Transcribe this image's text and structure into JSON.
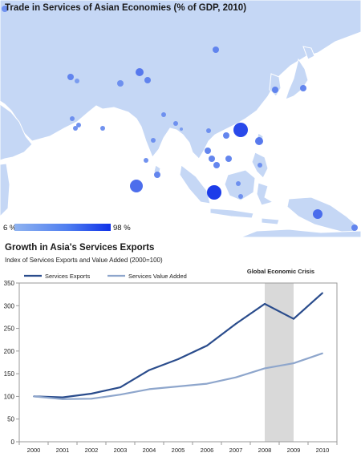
{
  "map": {
    "title": "Trade in Services of Asian Economies (% of GDP, 2010)",
    "legend": {
      "min_label": "6 %",
      "max_label": "98 %"
    },
    "colors": {
      "land": "#c5d7f5",
      "land_border": "#ffffff",
      "sea": "#ffffff",
      "bubble_low": "#8fb3f0",
      "bubble_high": "#1032e8"
    }
  },
  "chart_title": "Growth in Asia's Services Exports",
  "chart_subtitle": "Index of Services Exports and Value Added (2000=100)",
  "chart_data": {
    "type": "line",
    "x": [
      2000,
      2001,
      2002,
      2003,
      2004,
      2005,
      2006,
      2007,
      2008,
      2009,
      2010
    ],
    "categories": [
      "2000",
      "2001",
      "2002",
      "2003",
      "2004",
      "2005",
      "2006",
      "2007",
      "2008",
      "2009",
      "2010"
    ],
    "series": [
      {
        "name": "Services Exports",
        "color": "#2a4c8c",
        "values": [
          100,
          98,
          106,
          120,
          158,
          182,
          212,
          260,
          304,
          271,
          328
        ]
      },
      {
        "name": "Services Value Added",
        "color": "#8ea6cc",
        "values": [
          100,
          94,
          95,
          104,
          116,
          122,
          128,
          142,
          162,
          173,
          195
        ]
      }
    ],
    "ylim": [
      0,
      350
    ],
    "yticks": [
      "0",
      "50",
      "100",
      "150",
      "200",
      "250",
      "300",
      "350"
    ],
    "xlabel": "",
    "ylabel": "",
    "grid": false,
    "legend_position": "top-left",
    "shaded_region": {
      "from": 2008,
      "to": 2009,
      "label": "Global Economic Crisis",
      "color": "#d9d9d9"
    }
  }
}
